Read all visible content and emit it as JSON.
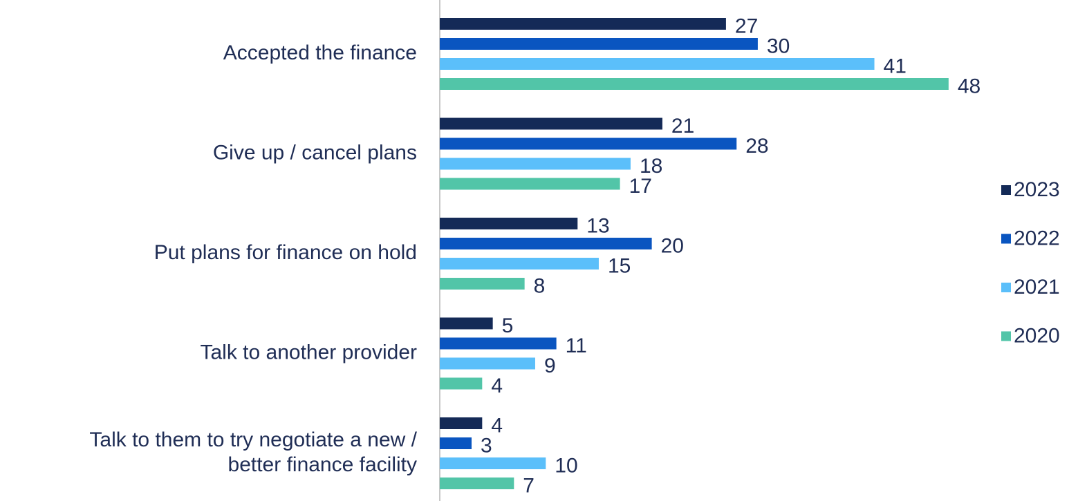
{
  "chart_data": {
    "type": "bar",
    "orientation": "horizontal",
    "categories": [
      "Accepted the finance",
      "Give up / cancel plans",
      "Put plans for finance on hold",
      "Talk to another provider",
      "Talk to them to try negotiate a new / better finance facility"
    ],
    "series": [
      {
        "name": "2023",
        "color": "#142a57",
        "values": [
          27,
          21,
          13,
          5,
          4
        ]
      },
      {
        "name": "2022",
        "color": "#0a55c0",
        "values": [
          30,
          28,
          20,
          11,
          3
        ]
      },
      {
        "name": "2021",
        "color": "#5bbffa",
        "values": [
          41,
          18,
          15,
          9,
          10
        ]
      },
      {
        "name": "2020",
        "color": "#52c5a8",
        "values": [
          48,
          17,
          8,
          4,
          7
        ]
      }
    ],
    "xlim": [
      0,
      50
    ],
    "legend": "right"
  }
}
